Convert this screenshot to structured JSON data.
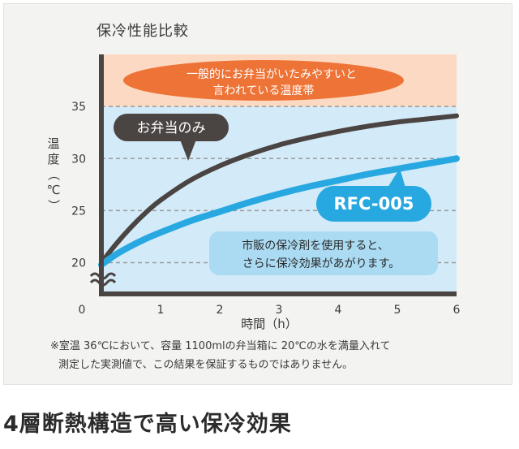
{
  "chart_data": {
    "type": "line",
    "title": "保冷性能比較",
    "xlabel": "時間（h）",
    "ylabel": "温度（℃）",
    "x_ticks": [
      "0",
      "1",
      "2",
      "3",
      "4",
      "5",
      "6"
    ],
    "y_ticks": [
      "20",
      "25",
      "30",
      "35"
    ],
    "xlim": [
      0,
      6
    ],
    "ylim": [
      17,
      40
    ],
    "axis_break": "between 0 and 20",
    "grid": "dashed horizontal at 20, 25, 30, 35",
    "zones": [
      {
        "y_from": 35,
        "y_to": 40,
        "color": "#fbd9c2"
      },
      {
        "y_from": 17,
        "y_to": 35,
        "color": "#d3eaf8"
      }
    ],
    "series": [
      {
        "name": "お弁当のみ",
        "color": "#4a4442",
        "x": [
          0,
          0.25,
          0.5,
          0.75,
          1,
          1.5,
          2,
          2.5,
          3,
          3.5,
          4,
          4.5,
          5,
          5.5,
          6
        ],
        "y": [
          20,
          21.8,
          23.4,
          24.8,
          26.0,
          27.9,
          29.3,
          30.4,
          31.3,
          32.0,
          32.6,
          33.1,
          33.5,
          33.8,
          34.1
        ]
      },
      {
        "name": "RFC-005",
        "color": "#28a8e0",
        "x": [
          0,
          0.25,
          0.5,
          0.75,
          1,
          1.5,
          2,
          2.5,
          3,
          3.5,
          4,
          4.5,
          5,
          5.5,
          6
        ],
        "y": [
          19.8,
          20.8,
          21.6,
          22.3,
          22.9,
          24.0,
          24.9,
          25.8,
          26.6,
          27.3,
          27.9,
          28.5,
          29.0,
          29.5,
          30.0
        ]
      }
    ],
    "annotations": {
      "danger_zone": [
        "一般的にお弁当がいたみやすいと",
        "言われている温度帯"
      ],
      "bento_only_label": "お弁当のみ",
      "rfc_label": "RFC-005",
      "extra_cooling": [
        "市販の保冷剤を使用すると、",
        "さらに保冷効果があがります。"
      ]
    },
    "colors": {
      "danger_bubble": "#ee7336",
      "rfc_bubble": "#28a8e0",
      "bento_bubble": "#4a4442",
      "extra_bubble": "#aadbf3",
      "axis": "#4a4442"
    }
  },
  "notes": [
    "※室温 36℃において、容量 1100mlの弁当箱に 20℃の水を満量入れて",
    "測定した実測値で、この結果を保証するものではありません。"
  ],
  "footer": {
    "heading": "4層断熱構造で高い保冷効果"
  }
}
